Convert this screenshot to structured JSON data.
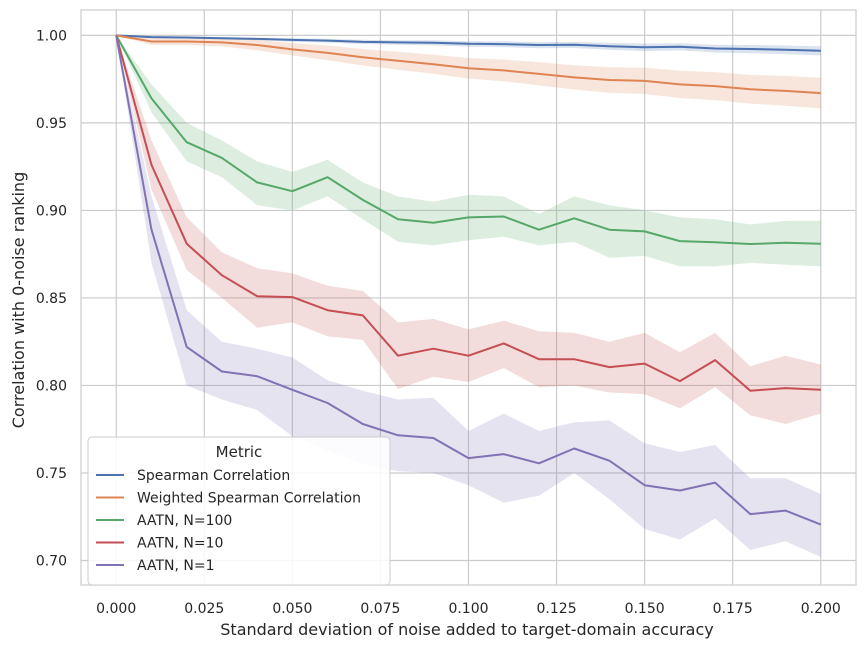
{
  "chart_data": {
    "type": "line",
    "title": "",
    "xlabel": "Standard deviation of noise added to target-domain accuracy",
    "ylabel": "Correlation with 0-noise ranking",
    "xlim": [
      -0.01,
      0.21
    ],
    "ylim": [
      0.686,
      1.0145
    ],
    "grid": true,
    "x_ticks": [
      "0.000",
      "0.025",
      "0.050",
      "0.075",
      "0.100",
      "0.125",
      "0.150",
      "0.175",
      "0.200"
    ],
    "y_ticks": [
      "0.70",
      "0.75",
      "0.80",
      "0.85",
      "0.90",
      "0.95",
      "1.00"
    ],
    "legend": {
      "title": "Metric",
      "position": "bottom-left"
    },
    "x": [
      0.0,
      0.01,
      0.02,
      0.03,
      0.04,
      0.05,
      0.06,
      0.07,
      0.08,
      0.09,
      0.1,
      0.11,
      0.12,
      0.13,
      0.14,
      0.15,
      0.16,
      0.17,
      0.18,
      0.19,
      0.2
    ],
    "series": [
      {
        "name": "Spearman Correlation",
        "color": "#4c72b0",
        "values": [
          1.0,
          0.999,
          0.9988,
          0.9984,
          0.998,
          0.9974,
          0.997,
          0.9963,
          0.996,
          0.9958,
          0.9952,
          0.995,
          0.9945,
          0.9946,
          0.9938,
          0.9932,
          0.9935,
          0.9925,
          0.9922,
          0.9918,
          0.9912
        ],
        "upper": [
          1.0,
          0.9995,
          0.9993,
          0.999,
          0.9987,
          0.9983,
          0.998,
          0.9975,
          0.9972,
          0.9972,
          0.9967,
          0.9966,
          0.9962,
          0.9963,
          0.9957,
          0.9953,
          0.9955,
          0.9947,
          0.9945,
          0.9942,
          0.9938
        ],
        "lower": [
          1.0,
          0.9985,
          0.9982,
          0.9977,
          0.9972,
          0.9964,
          0.9959,
          0.9951,
          0.9947,
          0.9943,
          0.9936,
          0.9933,
          0.9927,
          0.9928,
          0.9918,
          0.991,
          0.9914,
          0.9902,
          0.9898,
          0.9893,
          0.9885
        ]
      },
      {
        "name": "Weighted Spearman Correlation",
        "color": "#dd8452",
        "values": [
          1.0,
          0.9965,
          0.9965,
          0.996,
          0.9945,
          0.992,
          0.99,
          0.9875,
          0.9855,
          0.9835,
          0.9812,
          0.98,
          0.978,
          0.976,
          0.9745,
          0.974,
          0.972,
          0.971,
          0.9692,
          0.9683,
          0.967
        ],
        "upper": [
          1.0,
          0.9985,
          0.9985,
          0.9983,
          0.9975,
          0.9955,
          0.9942,
          0.9922,
          0.9906,
          0.9889,
          0.9871,
          0.9862,
          0.9846,
          0.9829,
          0.9818,
          0.9815,
          0.9798,
          0.979,
          0.9774,
          0.9768,
          0.9758
        ],
        "lower": [
          1.0,
          0.9945,
          0.9945,
          0.9937,
          0.9915,
          0.9885,
          0.9858,
          0.9828,
          0.9804,
          0.9781,
          0.9753,
          0.9738,
          0.9714,
          0.9691,
          0.9672,
          0.9665,
          0.9642,
          0.963,
          0.961,
          0.9598,
          0.9582
        ]
      },
      {
        "name": "AATN, N=100",
        "color": "#55a868",
        "values": [
          1.0,
          0.964,
          0.939,
          0.93,
          0.916,
          0.911,
          0.919,
          0.906,
          0.895,
          0.893,
          0.896,
          0.8965,
          0.889,
          0.8955,
          0.889,
          0.888,
          0.8825,
          0.8818,
          0.8808,
          0.8815,
          0.881
        ],
        "upper": [
          1.0,
          0.972,
          0.95,
          0.94,
          0.928,
          0.922,
          0.929,
          0.916,
          0.908,
          0.905,
          0.909,
          0.908,
          0.898,
          0.908,
          0.903,
          0.9,
          0.896,
          0.895,
          0.892,
          0.894,
          0.894
        ],
        "lower": [
          1.0,
          0.956,
          0.928,
          0.919,
          0.903,
          0.9,
          0.908,
          0.895,
          0.882,
          0.88,
          0.883,
          0.885,
          0.88,
          0.882,
          0.873,
          0.874,
          0.868,
          0.868,
          0.87,
          0.869,
          0.868
        ]
      },
      {
        "name": "AATN, N=10",
        "color": "#c44e52",
        "values": [
          1.0,
          0.926,
          0.881,
          0.863,
          0.851,
          0.8505,
          0.843,
          0.84,
          0.817,
          0.821,
          0.817,
          0.824,
          0.815,
          0.815,
          0.8105,
          0.8125,
          0.8025,
          0.8145,
          0.797,
          0.7985,
          0.7975
        ],
        "upper": [
          1.0,
          0.94,
          0.896,
          0.876,
          0.867,
          0.864,
          0.857,
          0.854,
          0.836,
          0.838,
          0.832,
          0.837,
          0.831,
          0.83,
          0.825,
          0.83,
          0.819,
          0.83,
          0.811,
          0.817,
          0.812
        ],
        "lower": [
          1.0,
          0.912,
          0.866,
          0.85,
          0.833,
          0.836,
          0.828,
          0.826,
          0.798,
          0.805,
          0.802,
          0.81,
          0.799,
          0.8,
          0.796,
          0.795,
          0.787,
          0.799,
          0.783,
          0.778,
          0.784
        ]
      },
      {
        "name": "AATN, N=1",
        "color": "#8172b3",
        "values": [
          1.0,
          0.889,
          0.822,
          0.808,
          0.8053,
          0.7975,
          0.79,
          0.778,
          0.7715,
          0.77,
          0.7585,
          0.7608,
          0.7555,
          0.764,
          0.757,
          0.743,
          0.74,
          0.7445,
          0.7265,
          0.7285,
          0.7205
        ],
        "upper": [
          1.0,
          0.908,
          0.843,
          0.825,
          0.821,
          0.816,
          0.803,
          0.797,
          0.792,
          0.793,
          0.774,
          0.784,
          0.774,
          0.779,
          0.78,
          0.767,
          0.762,
          0.766,
          0.747,
          0.747,
          0.738
        ],
        "lower": [
          1.0,
          0.87,
          0.8,
          0.792,
          0.786,
          0.771,
          0.763,
          0.755,
          0.751,
          0.75,
          0.743,
          0.733,
          0.737,
          0.75,
          0.735,
          0.718,
          0.712,
          0.724,
          0.706,
          0.711,
          0.702
        ]
      }
    ]
  }
}
